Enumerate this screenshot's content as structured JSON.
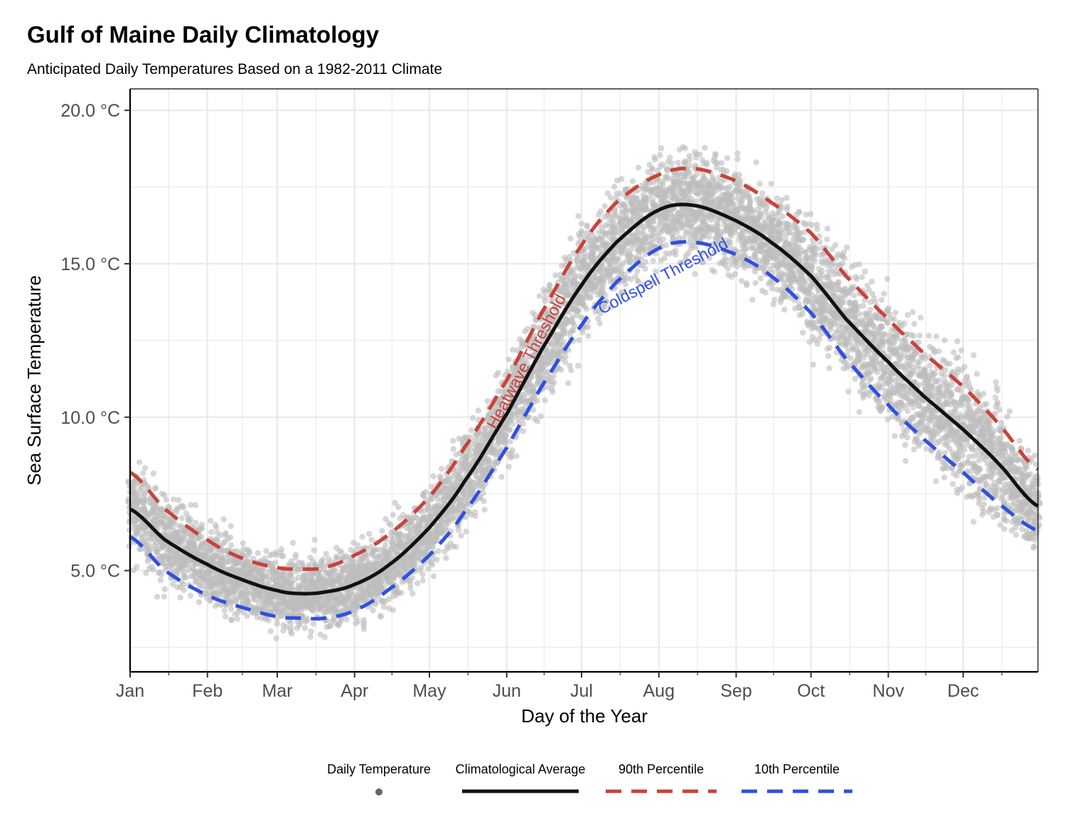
{
  "title": "Gulf of Maine Daily Climatology",
  "subtitle": "Anticipated Daily Temperatures Based on a 1982-2011 Climate",
  "colors": {
    "points": "#bdbdbd",
    "average": "#111111",
    "p90": "#c8433a",
    "p10": "#3150e0",
    "grid": "#ebebeb"
  },
  "chart_data": {
    "type": "line",
    "xlabel": "Day of the Year",
    "ylabel": "Sea Surface Temperature",
    "x_ticks": [
      "Jan",
      "Feb",
      "Mar",
      "Apr",
      "May",
      "Jun",
      "Jul",
      "Aug",
      "Sep",
      "Oct",
      "Nov",
      "Dec"
    ],
    "y_ticks": [
      "5.0 °C",
      "10.0 °C",
      "15.0 °C",
      "20.0 °C"
    ],
    "xlim": [
      "Jan 1",
      "Dec 31"
    ],
    "ylim": [
      1.7,
      20.7
    ],
    "grid": true,
    "legend_position": "bottom",
    "x": [
      "Jan 1",
      "Jan 15",
      "Feb 1",
      "Feb 15",
      "Mar 1",
      "Mar 10",
      "Mar 20",
      "Apr 1",
      "Apr 15",
      "May 1",
      "May 15",
      "Jun 1",
      "Jun 15",
      "Jul 1",
      "Jul 15",
      "Aug 1",
      "Aug 15",
      "Sep 1",
      "Sep 15",
      "Oct 1",
      "Oct 15",
      "Nov 1",
      "Nov 15",
      "Dec 1",
      "Dec 15",
      "Dec 31"
    ],
    "series": [
      {
        "name": "Climatological Average",
        "style": "solid",
        "values": [
          7.0,
          6.0,
          5.2,
          4.7,
          4.35,
          4.25,
          4.3,
          4.55,
          5.2,
          6.4,
          7.9,
          10.1,
          12.2,
          14.3,
          15.7,
          16.75,
          16.9,
          16.4,
          15.7,
          14.6,
          13.2,
          11.8,
          10.7,
          9.6,
          8.5,
          7.1
        ]
      },
      {
        "name": "90th Percentile",
        "style": "dashed",
        "values": [
          8.2,
          7.0,
          6.0,
          5.4,
          5.1,
          5.05,
          5.1,
          5.5,
          6.2,
          7.4,
          9.0,
          11.2,
          13.4,
          15.6,
          17.0,
          17.9,
          18.1,
          17.7,
          17.0,
          16.0,
          14.6,
          13.2,
          12.1,
          11.0,
          9.8,
          8.3
        ]
      },
      {
        "name": "10th Percentile",
        "style": "dashed",
        "values": [
          6.1,
          5.0,
          4.2,
          3.8,
          3.5,
          3.45,
          3.45,
          3.7,
          4.4,
          5.5,
          6.9,
          9.0,
          11.0,
          13.0,
          14.4,
          15.5,
          15.7,
          15.3,
          14.6,
          13.4,
          11.9,
          10.4,
          9.3,
          8.2,
          7.2,
          6.3
        ]
      }
    ],
    "scatter_series": {
      "name": "Daily Temperature",
      "description_spread": 0.9
    },
    "annotations": [
      "Heatwave Threshold",
      "Coldspell Threshold"
    ]
  },
  "legend": {
    "items": [
      {
        "label": "Daily Temperature",
        "type": "point"
      },
      {
        "label": "Climatological Average",
        "type": "solid"
      },
      {
        "label": "90th Percentile",
        "type": "dashed-red"
      },
      {
        "label": "10th Percentile",
        "type": "dashed-blue"
      }
    ]
  }
}
